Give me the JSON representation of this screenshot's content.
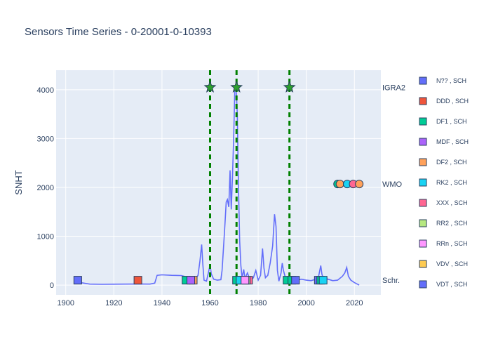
{
  "chart_data": {
    "type": "line",
    "title": "Sensors Time Series - 0-20001-0-10393",
    "ylabel": "SNHT",
    "xlabel": "",
    "xlim": [
      1896,
      2031
    ],
    "ylim": [
      -200,
      4400
    ],
    "xticks": [
      1900,
      1920,
      1940,
      1960,
      1980,
      2000,
      2020
    ],
    "yticks": [
      0,
      1000,
      2000,
      3000,
      4000
    ],
    "grid": true,
    "legend_position": "right",
    "colors": {
      "plot_bg": "#e5ecf6",
      "grid": "#ffffff",
      "line": "#636efa",
      "vline": "#008000",
      "text": "#2a3f5f"
    },
    "snht_series": {
      "name": "SNHT",
      "points": [
        [
          1905,
          60
        ],
        [
          1910,
          20
        ],
        [
          1915,
          15
        ],
        [
          1920,
          18
        ],
        [
          1925,
          20
        ],
        [
          1930,
          22
        ],
        [
          1935,
          20
        ],
        [
          1937,
          40
        ],
        [
          1938,
          200
        ],
        [
          1940,
          210
        ],
        [
          1944,
          200
        ],
        [
          1948,
          195
        ],
        [
          1950,
          170
        ],
        [
          1952,
          110
        ],
        [
          1953,
          90
        ],
        [
          1954,
          130
        ],
        [
          1955,
          200
        ],
        [
          1955.8,
          500
        ],
        [
          1956.5,
          830
        ],
        [
          1957,
          420
        ],
        [
          1957.5,
          100
        ],
        [
          1958.5,
          80
        ],
        [
          1959.5,
          300
        ],
        [
          1960,
          420
        ],
        [
          1960.5,
          230
        ],
        [
          1961.5,
          120
        ],
        [
          1963,
          100
        ],
        [
          1964.5,
          110
        ],
        [
          1965,
          300
        ],
        [
          1966,
          1100
        ],
        [
          1966.7,
          1700
        ],
        [
          1967.2,
          1750
        ],
        [
          1967.8,
          1600
        ],
        [
          1968.3,
          2350
        ],
        [
          1968.8,
          1550
        ],
        [
          1969.3,
          2200
        ],
        [
          1969.8,
          3000
        ],
        [
          1970.3,
          4000
        ],
        [
          1970.8,
          4100
        ],
        [
          1971.3,
          3500
        ],
        [
          1971.8,
          2000
        ],
        [
          1972.3,
          900
        ],
        [
          1972.8,
          400
        ],
        [
          1973.3,
          150
        ],
        [
          1974,
          320
        ],
        [
          1974.5,
          130
        ],
        [
          1975.5,
          250
        ],
        [
          1976.3,
          150
        ],
        [
          1977,
          100
        ],
        [
          1978,
          150
        ],
        [
          1979,
          300
        ],
        [
          1980,
          100
        ],
        [
          1981,
          200
        ],
        [
          1981.8,
          750
        ],
        [
          1982.4,
          350
        ],
        [
          1983,
          150
        ],
        [
          1984,
          200
        ],
        [
          1985,
          450
        ],
        [
          1986,
          800
        ],
        [
          1986.8,
          1450
        ],
        [
          1987.4,
          1200
        ],
        [
          1988,
          300
        ],
        [
          1988.6,
          80
        ],
        [
          1989.5,
          250
        ],
        [
          1990,
          450
        ],
        [
          1990.5,
          300
        ],
        [
          1991.5,
          120
        ],
        [
          1992.5,
          150
        ],
        [
          1993.2,
          80
        ],
        [
          1994,
          120
        ],
        [
          1996,
          100
        ],
        [
          1998,
          120
        ],
        [
          2000,
          100
        ],
        [
          2002,
          90
        ],
        [
          2004,
          120
        ],
        [
          2005,
          150
        ],
        [
          2006,
          400
        ],
        [
          2006.5,
          220
        ],
        [
          2007,
          150
        ],
        [
          2009,
          120
        ],
        [
          2011,
          90
        ],
        [
          2013,
          100
        ],
        [
          2015,
          180
        ],
        [
          2016,
          250
        ],
        [
          2016.8,
          360
        ],
        [
          2017.5,
          180
        ],
        [
          2018.5,
          100
        ],
        [
          2020,
          50
        ],
        [
          2022,
          0
        ]
      ]
    },
    "breakpoints": {
      "years": [
        1960,
        1971,
        1993
      ],
      "y_at": 4050
    },
    "sensor_markers": [
      {
        "x": 1905,
        "y": 100,
        "color": "#636efa"
      },
      {
        "x": 1930,
        "y": 100,
        "color": "#ef553b"
      },
      {
        "x": 1950,
        "y": 100,
        "color": "#00cc96"
      },
      {
        "x": 1953,
        "y": 100,
        "color": "#ffa15a"
      },
      {
        "x": 1952,
        "y": 100,
        "color": "#ab63fa"
      },
      {
        "x": 1971,
        "y": 100,
        "color": "#00cc96"
      },
      {
        "x": 1972.5,
        "y": 100,
        "color": "#19d3f3"
      },
      {
        "x": 1976,
        "y": 100,
        "color": "#ff6692"
      },
      {
        "x": 1975,
        "y": 100,
        "color": "#b6e880"
      },
      {
        "x": 1974.5,
        "y": 100,
        "color": "#ff97ff"
      },
      {
        "x": 1992,
        "y": 100,
        "color": "#00cc96"
      },
      {
        "x": 1994,
        "y": 100,
        "color": "#00cc96"
      },
      {
        "x": 1995.5,
        "y": 100,
        "color": "#636efa"
      },
      {
        "x": 2005,
        "y": 100,
        "color": "#636efa"
      },
      {
        "x": 2006,
        "y": 100,
        "color": "#00cc96"
      },
      {
        "x": 2007,
        "y": 100,
        "color": "#19d3f3"
      }
    ],
    "wmo_markers": [
      {
        "x": 2013,
        "y": 2070,
        "color": "#00cc96"
      },
      {
        "x": 2014,
        "y": 2070,
        "color": "#ffa15a"
      },
      {
        "x": 2017,
        "y": 2070,
        "color": "#19d3f3"
      },
      {
        "x": 2019.5,
        "y": 2070,
        "color": "#ff6692"
      },
      {
        "x": 2022,
        "y": 2070,
        "color": "#ffa15a"
      }
    ],
    "side_labels": [
      {
        "text": "IGRA2",
        "y": 4050
      },
      {
        "text": "WMO",
        "y": 2070
      },
      {
        "text": "Schr.",
        "y": 100
      }
    ],
    "legend": [
      {
        "label": "N?? , SCH",
        "color": "#636efa"
      },
      {
        "label": "DDD , SCH",
        "color": "#ef553b"
      },
      {
        "label": "DF1 , SCH",
        "color": "#00cc96"
      },
      {
        "label": "MDF , SCH",
        "color": "#ab63fa"
      },
      {
        "label": "DF2 , SCH",
        "color": "#ffa15a"
      },
      {
        "label": "RK2 , SCH",
        "color": "#19d3f3"
      },
      {
        "label": "XXX , SCH",
        "color": "#ff6692"
      },
      {
        "label": "RR2 , SCH",
        "color": "#b6e880"
      },
      {
        "label": "RRn , SCH",
        "color": "#ff97ff"
      },
      {
        "label": "VDV , SCH",
        "color": "#fecb52"
      },
      {
        "label": "VDT , SCH",
        "color": "#636efa"
      }
    ]
  }
}
